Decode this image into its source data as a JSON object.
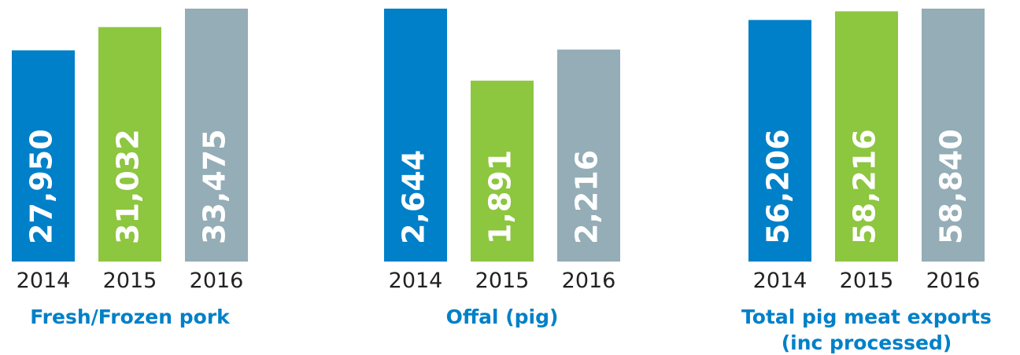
{
  "chart_data": [
    {
      "type": "bar",
      "title": "Fresh/Frozen pork",
      "categories": [
        "2014",
        "2015",
        "2016"
      ],
      "values": [
        27950,
        31032,
        33475
      ],
      "value_labels": [
        "27,950",
        "31,032",
        "33,475"
      ],
      "colors": [
        "#0080c8",
        "#8dc63f",
        "#94adb6"
      ]
    },
    {
      "type": "bar",
      "title": "Offal (pig)",
      "categories": [
        "2014",
        "2015",
        "2016"
      ],
      "values": [
        2644,
        1891,
        2216
      ],
      "value_labels": [
        "2,644",
        "1,891",
        "2,216"
      ],
      "colors": [
        "#0080c8",
        "#8dc63f",
        "#94adb6"
      ]
    },
    {
      "type": "bar",
      "title": [
        "Total pig meat exports",
        "(inc processed)"
      ],
      "categories": [
        "2014",
        "2015",
        "2016"
      ],
      "values": [
        56206,
        58216,
        58840
      ],
      "value_labels": [
        "56,206",
        "58,216",
        "58,840"
      ],
      "colors": [
        "#0080c8",
        "#8dc63f",
        "#94adb6"
      ]
    }
  ]
}
